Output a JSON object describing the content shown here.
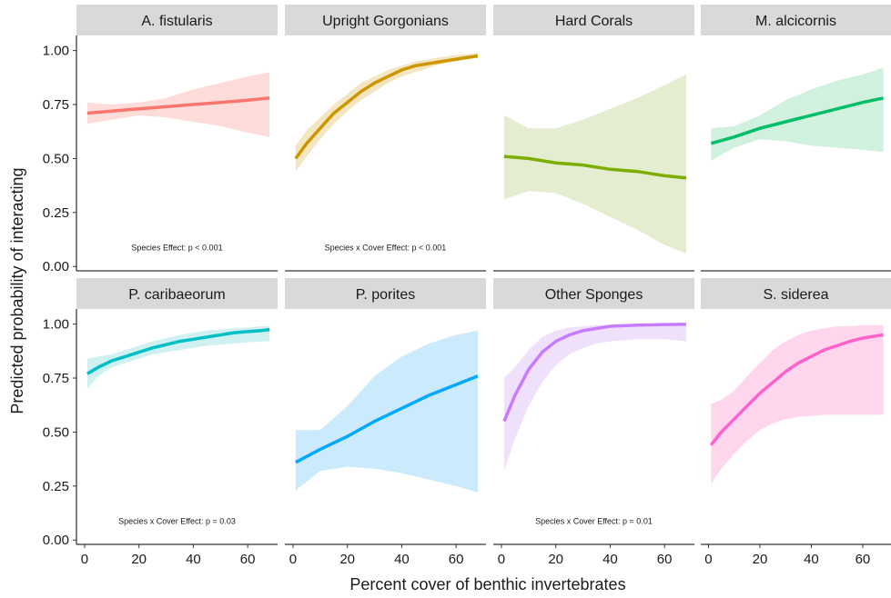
{
  "chart_data": {
    "type": "line",
    "xlabel": "Percent cover of benthic invertebrates",
    "ylabel": "Predicted probability of interacting",
    "xlim": [
      -3,
      71
    ],
    "ylim": [
      -0.02,
      1.07
    ],
    "x_ticks": [
      "0",
      "20",
      "40",
      "60"
    ],
    "y_ticks": [
      "0.00",
      "0.25",
      "0.50",
      "0.75",
      "1.00"
    ],
    "grid": false,
    "legend": "none",
    "panels": [
      {
        "name": "A. fistularis",
        "color": "#F8766D",
        "fill": "#FDDCDA",
        "annotation": "Species Effect: p < 0.001",
        "x": [
          1,
          10,
          20,
          30,
          40,
          50,
          60,
          68
        ],
        "y": [
          0.71,
          0.72,
          0.73,
          0.74,
          0.75,
          0.76,
          0.77,
          0.78
        ],
        "lower": [
          0.66,
          0.68,
          0.7,
          0.69,
          0.67,
          0.65,
          0.62,
          0.6
        ],
        "upper": [
          0.76,
          0.75,
          0.76,
          0.78,
          0.82,
          0.85,
          0.88,
          0.9
        ]
      },
      {
        "name": "Upright Gorgonians",
        "color": "#CD9600",
        "fill": "#F5E6C2",
        "annotation": "Species x Cover Effect: p < 0.001",
        "x": [
          1,
          5,
          10,
          15,
          20,
          25,
          30,
          35,
          40,
          45,
          50,
          55,
          60,
          65,
          68
        ],
        "y": [
          0.5,
          0.57,
          0.64,
          0.71,
          0.76,
          0.81,
          0.85,
          0.88,
          0.91,
          0.93,
          0.94,
          0.95,
          0.96,
          0.97,
          0.975
        ],
        "lower": [
          0.44,
          0.51,
          0.59,
          0.66,
          0.72,
          0.77,
          0.81,
          0.85,
          0.88,
          0.9,
          0.92,
          0.94,
          0.95,
          0.96,
          0.965
        ],
        "upper": [
          0.56,
          0.63,
          0.69,
          0.75,
          0.8,
          0.85,
          0.88,
          0.91,
          0.93,
          0.95,
          0.96,
          0.97,
          0.98,
          0.985,
          0.99
        ]
      },
      {
        "name": "Hard Corals",
        "color": "#7CAE00",
        "fill": "#E4EDCF",
        "annotation": "",
        "x": [
          1,
          10,
          20,
          30,
          40,
          50,
          60,
          68
        ],
        "y": [
          0.51,
          0.5,
          0.48,
          0.47,
          0.45,
          0.44,
          0.42,
          0.41
        ],
        "lower": [
          0.31,
          0.35,
          0.34,
          0.29,
          0.23,
          0.17,
          0.1,
          0.06
        ],
        "upper": [
          0.7,
          0.64,
          0.64,
          0.68,
          0.73,
          0.78,
          0.84,
          0.89
        ]
      },
      {
        "name": "M. alcicornis",
        "color": "#00BE67",
        "fill": "#CFF1DE",
        "annotation": "",
        "x": [
          1,
          10,
          20,
          30,
          40,
          50,
          60,
          68
        ],
        "y": [
          0.57,
          0.6,
          0.64,
          0.67,
          0.7,
          0.73,
          0.76,
          0.78
        ],
        "lower": [
          0.49,
          0.55,
          0.59,
          0.58,
          0.56,
          0.55,
          0.54,
          0.53
        ],
        "upper": [
          0.64,
          0.65,
          0.7,
          0.77,
          0.82,
          0.86,
          0.89,
          0.92
        ]
      },
      {
        "name": "P. caribaeorum",
        "color": "#00BFC4",
        "fill": "#CFF1F2",
        "annotation": "Species x Cover Effect: p = 0.03",
        "x": [
          1,
          5,
          10,
          15,
          20,
          25,
          30,
          35,
          40,
          45,
          50,
          55,
          60,
          65,
          68
        ],
        "y": [
          0.77,
          0.8,
          0.83,
          0.85,
          0.87,
          0.89,
          0.905,
          0.92,
          0.93,
          0.94,
          0.95,
          0.96,
          0.965,
          0.97,
          0.975
        ],
        "lower": [
          0.7,
          0.76,
          0.8,
          0.82,
          0.84,
          0.86,
          0.87,
          0.88,
          0.89,
          0.9,
          0.905,
          0.91,
          0.915,
          0.92,
          0.92
        ],
        "upper": [
          0.84,
          0.85,
          0.86,
          0.88,
          0.9,
          0.92,
          0.935,
          0.95,
          0.96,
          0.97,
          0.975,
          0.98,
          0.985,
          0.99,
          0.99
        ]
      },
      {
        "name": "P. porites",
        "color": "#00A9FF",
        "fill": "#CBEBFC",
        "annotation": "",
        "x": [
          1,
          10,
          20,
          30,
          40,
          50,
          60,
          68
        ],
        "y": [
          0.36,
          0.42,
          0.48,
          0.55,
          0.61,
          0.67,
          0.72,
          0.76
        ],
        "lower": [
          0.23,
          0.32,
          0.34,
          0.33,
          0.31,
          0.28,
          0.25,
          0.22
        ],
        "upper": [
          0.51,
          0.51,
          0.62,
          0.76,
          0.85,
          0.91,
          0.95,
          0.97
        ]
      },
      {
        "name": "Other Sponges",
        "color": "#C77CFF",
        "fill": "#EFE0FB",
        "annotation": "Species x Cover Effect: p = 0.01",
        "x": [
          1,
          5,
          10,
          15,
          20,
          25,
          30,
          35,
          40,
          50,
          60,
          68
        ],
        "y": [
          0.55,
          0.67,
          0.79,
          0.87,
          0.92,
          0.95,
          0.97,
          0.98,
          0.99,
          0.995,
          0.998,
          0.999
        ],
        "lower": [
          0.32,
          0.47,
          0.62,
          0.73,
          0.81,
          0.86,
          0.89,
          0.91,
          0.92,
          0.93,
          0.93,
          0.92
        ],
        "upper": [
          0.75,
          0.8,
          0.88,
          0.94,
          0.97,
          0.985,
          0.99,
          0.995,
          0.997,
          0.999,
          0.999,
          0.999
        ]
      },
      {
        "name": "S. siderea",
        "color": "#FF61CC",
        "fill": "#FFD6EE",
        "annotation": "",
        "x": [
          1,
          5,
          10,
          15,
          20,
          25,
          30,
          35,
          40,
          45,
          50,
          55,
          60,
          65,
          68
        ],
        "y": [
          0.44,
          0.5,
          0.56,
          0.62,
          0.68,
          0.73,
          0.78,
          0.82,
          0.85,
          0.88,
          0.9,
          0.92,
          0.935,
          0.945,
          0.95
        ],
        "lower": [
          0.26,
          0.33,
          0.4,
          0.46,
          0.51,
          0.54,
          0.56,
          0.57,
          0.575,
          0.58,
          0.58,
          0.58,
          0.58,
          0.58,
          0.58
        ],
        "upper": [
          0.63,
          0.65,
          0.69,
          0.76,
          0.82,
          0.88,
          0.92,
          0.95,
          0.97,
          0.98,
          0.99,
          0.99,
          0.995,
          0.995,
          0.995
        ]
      }
    ]
  }
}
